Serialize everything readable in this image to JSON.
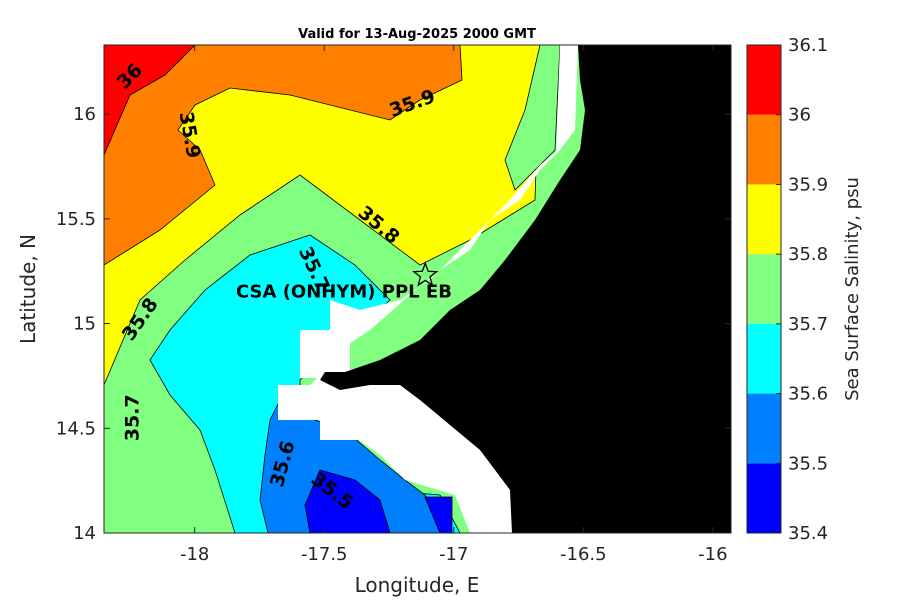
{
  "chart_data": {
    "type": "contour-map",
    "title": "Valid for 13-Aug-2025 2000 GMT",
    "xlabel": "Longitude, E",
    "ylabel": "Latitude, N",
    "xlim": [
      -18.35,
      -15.93
    ],
    "ylim": [
      14.0,
      16.33
    ],
    "xticks": [
      -18,
      -17.5,
      -17,
      -16.5,
      -16
    ],
    "yticks": [
      14,
      14.5,
      15,
      15.5,
      16
    ],
    "colorbar": {
      "label": "Sea Surface Salinity, psu",
      "levels": [
        35.4,
        35.5,
        35.6,
        35.7,
        35.8,
        35.9,
        36.0,
        36.1
      ],
      "colors": [
        "#0000ff",
        "#0080ff",
        "#00ffff",
        "#80ff80",
        "#ffff00",
        "#ff8000",
        "#ff0000"
      ]
    },
    "contour_labels": [
      {
        "text": "36",
        "lon": -18.25,
        "lat": 16.18,
        "angle": -45
      },
      {
        "text": "35.9",
        "lon": -18.02,
        "lat": 15.9,
        "angle": 80
      },
      {
        "text": "35.9",
        "lon": -17.16,
        "lat": 16.05,
        "angle": -20
      },
      {
        "text": "35.8",
        "lon": -17.29,
        "lat": 15.47,
        "angle": 40
      },
      {
        "text": "35.8",
        "lon": -18.21,
        "lat": 15.02,
        "angle": -55
      },
      {
        "text": "35.7",
        "lon": -17.54,
        "lat": 15.26,
        "angle": 65
      },
      {
        "text": "35.7",
        "lon": -18.24,
        "lat": 14.55,
        "angle": -90
      },
      {
        "text": "35.6",
        "lon": -17.66,
        "lat": 14.33,
        "angle": -75
      },
      {
        "text": "35.5",
        "lon": -17.47,
        "lat": 14.2,
        "angle": 38
      }
    ],
    "site": {
      "label": "CSA (ONHYM) PPL EB",
      "lon": -17.11,
      "lat": 15.23
    }
  }
}
